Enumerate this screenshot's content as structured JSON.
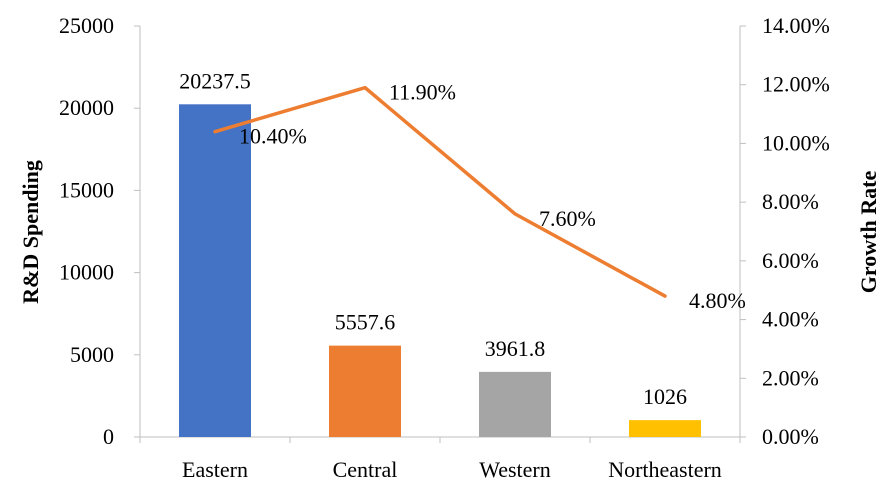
{
  "chart_data": {
    "type": "bar+line",
    "categories": [
      "Eastern",
      "Central",
      "Western",
      "Northeastern"
    ],
    "series": [
      {
        "type": "bar",
        "axis": "left",
        "values": [
          20237.5,
          5557.6,
          3961.8,
          1026
        ],
        "value_labels": [
          "20237.5",
          "5557.6",
          "3961.8",
          "1026"
        ],
        "colors": [
          "#4472C4",
          "#ED7D31",
          "#A5A5A5",
          "#FFC000"
        ]
      },
      {
        "type": "line",
        "axis": "right",
        "values": [
          10.4,
          11.9,
          7.6,
          4.8
        ],
        "value_labels": [
          "10.40%",
          "11.90%",
          "7.60%",
          "4.80%"
        ],
        "color": "#ED7D31"
      }
    ],
    "ylabel": "R&D Spending",
    "y2label": "Growth Rate",
    "ylim": [
      0,
      25000
    ],
    "y2lim": [
      0,
      14
    ],
    "yticks": [
      "0",
      "5000",
      "10000",
      "15000",
      "20000",
      "25000"
    ],
    "y2ticks": [
      "0.00%",
      "2.00%",
      "4.00%",
      "6.00%",
      "8.00%",
      "10.00%",
      "12.00%",
      "14.00%"
    ],
    "grid": false,
    "legend": "none"
  }
}
